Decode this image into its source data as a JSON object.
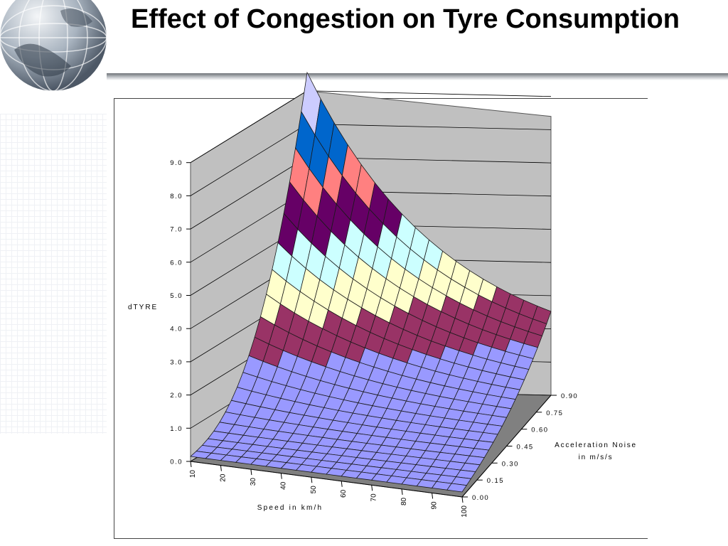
{
  "slide": {
    "title": "Effect of Congestion on Tyre Consumption"
  },
  "chart_data": {
    "type": "surface3d",
    "title": "",
    "zlabel": "dTYRE",
    "xlabel": "Speed in km/h",
    "ylabel_line1": "Acceleration Noise",
    "ylabel_line2": "in m/s/s",
    "zlim": [
      0,
      9
    ],
    "z_ticks": [
      "0.0",
      "1.0",
      "2.0",
      "3.0",
      "4.0",
      "5.0",
      "6.0",
      "7.0",
      "8.0",
      "9.0"
    ],
    "x_ticks": [
      "10",
      "20",
      "30",
      "40",
      "50",
      "60",
      "70",
      "80",
      "90",
      "100"
    ],
    "y_ticks": [
      "0.00",
      "0.15",
      "0.30",
      "0.45",
      "0.60",
      "0.75",
      "0.90"
    ],
    "speed_range": [
      10,
      100
    ],
    "acceleration_noise_range": [
      0,
      0.9
    ],
    "grid": true,
    "surface_corners": [
      {
        "speed": 10,
        "acceleration_noise": 0.0,
        "dTYRE": 0.2
      },
      {
        "speed": 100,
        "acceleration_noise": 0.0,
        "dTYRE": 0.1
      },
      {
        "speed": 10,
        "acceleration_noise": 0.9,
        "dTYRE": 9.6
      },
      {
        "speed": 100,
        "acceleration_noise": 0.9,
        "dTYRE": 2.6
      }
    ],
    "color_bands": [
      {
        "range": "0.0-2.0",
        "color": "#9999ff"
      },
      {
        "range": "2.0-3.0",
        "color": "#993366"
      },
      {
        "range": "3.0-4.0",
        "color": "#ffffcc"
      },
      {
        "range": "4.0-5.0",
        "color": "#ccffff"
      },
      {
        "range": "5.0-6.0",
        "color": "#660066"
      },
      {
        "range": "6.0-7.0",
        "color": "#ff8080"
      },
      {
        "range": "7.0-8.0",
        "color": "#0066cc"
      },
      {
        "range": "8.0-9.0",
        "color": "#ccccff"
      },
      {
        "range": "9.0-10.0",
        "color": "#000080"
      }
    ],
    "wall_color": "#c0c0c0",
    "floor_color": "#808080"
  }
}
